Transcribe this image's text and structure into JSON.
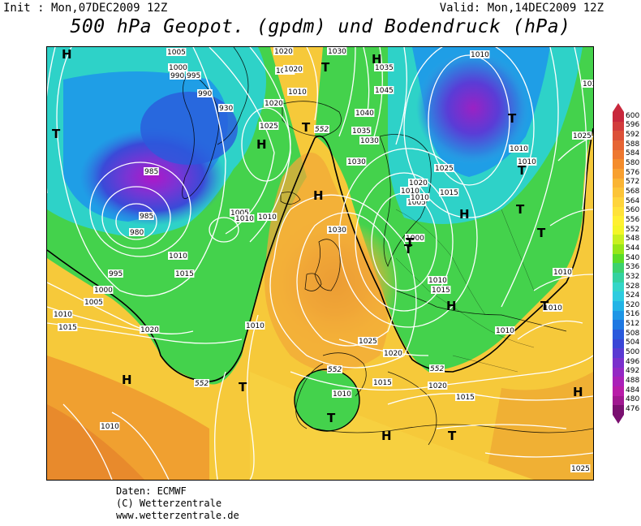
{
  "header": {
    "init": "Init : Mon,07DEC2009 12Z",
    "valid": "Valid: Mon,14DEC2009 12Z",
    "title": "500 hPa Geopot. (gpdm) und Bodendruck (hPa)"
  },
  "credits": [
    "Daten: ECMWF",
    "(C) Wetterzentrale",
    "www.wetterzentrale.de"
  ],
  "colorbar": {
    "labels": [
      "600",
      "596",
      "592",
      "588",
      "584",
      "580",
      "576",
      "572",
      "568",
      "564",
      "560",
      "556",
      "552",
      "548",
      "544",
      "540",
      "536",
      "532",
      "528",
      "524",
      "520",
      "516",
      "512",
      "508",
      "504",
      "500",
      "496",
      "492",
      "488",
      "484",
      "480",
      "476"
    ],
    "colors": [
      "#c8283c",
      "#d23c3c",
      "#dc5038",
      "#e66434",
      "#ee7830",
      "#f48c2c",
      "#f8a030",
      "#fab434",
      "#fcc438",
      "#fed43c",
      "#ffe23a",
      "#fff032",
      "#f4f628",
      "#c8f020",
      "#96e618",
      "#5adc28",
      "#3cd26e",
      "#34d2a0",
      "#34d6c8",
      "#2ecce0",
      "#22b4e6",
      "#1e96e6",
      "#1e78e2",
      "#2a5adc",
      "#3a46d6",
      "#5a3ad2",
      "#7a30cc",
      "#9428c4",
      "#aa20b8",
      "#b81ca8",
      "#a01890",
      "#7a1070"
    ]
  },
  "map_labels": {
    "pressure": [
      "1005",
      "1000",
      "995",
      "990",
      "930",
      "1020",
      "1015",
      "1020",
      "1025",
      "1020",
      "1030",
      "1045",
      "1040",
      "1035",
      "1030",
      "1010",
      "1010",
      "1025",
      "1010",
      "1005",
      "1015",
      "1020",
      "1030",
      "1035",
      "1030",
      "1025",
      "1010",
      "1010",
      "1010",
      "1010",
      "1005",
      "1010",
      "990",
      "985",
      "985",
      "980",
      "995",
      "1000",
      "1010",
      "1005",
      "1015",
      "1010",
      "1015",
      "1010",
      "1020",
      "1030",
      "1010",
      "1025",
      "1020",
      "1010",
      "1015",
      "1010",
      "1020",
      "1010",
      "1015",
      "1010",
      "1000",
      "1015",
      "1010",
      "1025"
    ],
    "geopot": [
      "552",
      "552",
      "552",
      "552"
    ],
    "highs": [
      "H",
      "H",
      "H",
      "H",
      "H",
      "H",
      "H",
      "H",
      "H"
    ],
    "lows": [
      "T",
      "T",
      "T",
      "T",
      "T",
      "T",
      "T",
      "T",
      "T",
      "T",
      "T",
      "T",
      "T"
    ]
  }
}
